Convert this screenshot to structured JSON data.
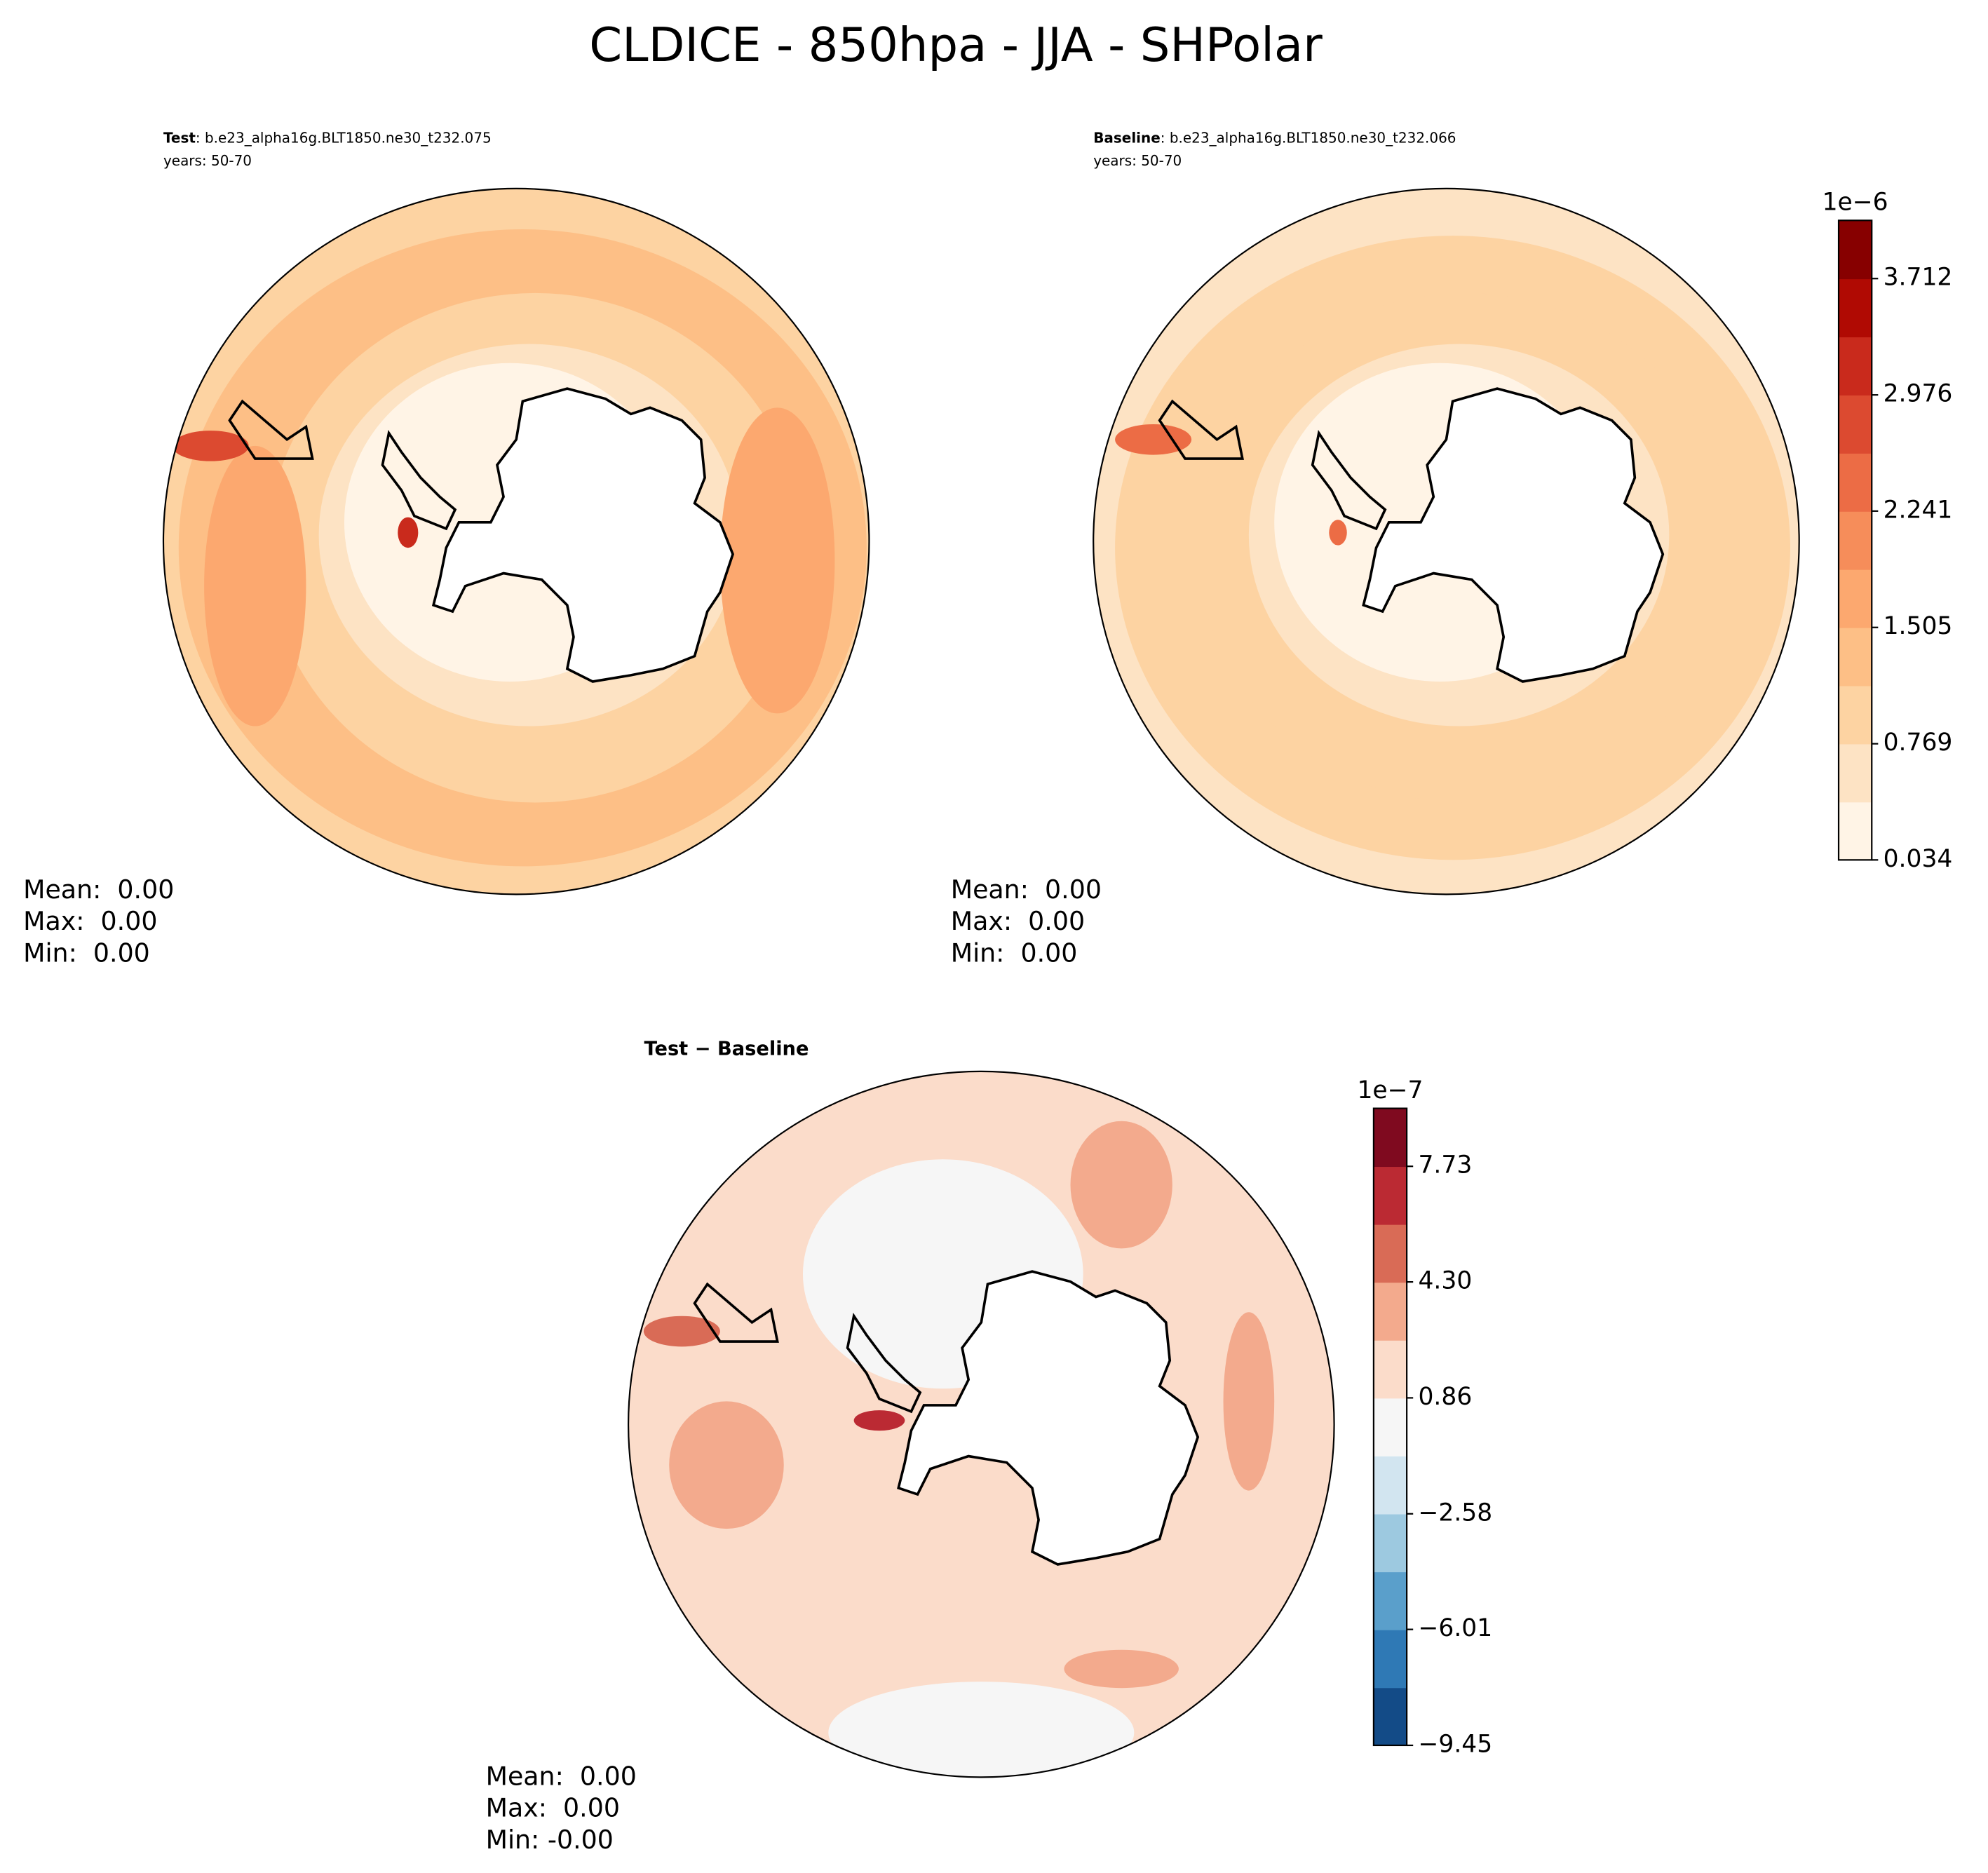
{
  "title": "CLDICE - 850hpa - JJA - SHPolar",
  "panels": [
    {
      "name": "Test",
      "case": ": b.e23_alpha16g.BLT1850.ne30_t232.075",
      "years": "years: 50-70",
      "stats": [
        "Mean:  0.00",
        "Max:  0.00",
        "Min:  0.00"
      ]
    },
    {
      "name": "Baseline",
      "case": ": b.e23_alpha16g.BLT1850.ne30_t232.066",
      "years": "years: 50-70",
      "stats": [
        "Mean:  0.00",
        "Max:  0.00",
        "Min:  0.00"
      ]
    },
    {
      "name": "Test − Baseline",
      "stats": [
        "Mean:  0.00",
        "Max:  0.00",
        "Min: -0.00"
      ]
    }
  ],
  "colorbars": [
    {
      "offset": "1e−6",
      "ylim": [
        0.034,
        4.08
      ],
      "yticks": [
        0.034,
        0.769,
        1.505,
        2.241,
        2.976,
        3.712
      ],
      "colors": [
        "#fff4e6",
        "#fde3c4",
        "#fdd3a2",
        "#fdbf86",
        "#fca86f",
        "#f68d5a",
        "#ec6c45",
        "#dc4a30",
        "#c92a1c",
        "#b00a03",
        "#870000"
      ]
    },
    {
      "offset": "1e−7",
      "ylim": [
        -9.45,
        9.45
      ],
      "yticks": [
        {
          "value": -9.45,
          "label": "−9.45"
        },
        {
          "value": -6.01,
          "label": "−6.01"
        },
        {
          "value": -2.58,
          "label": "−2.58"
        },
        0.86,
        {
          "value": 4.3,
          "label": "4.30"
        },
        7.73
      ],
      "colors": [
        "#134b87",
        "#2f79b5",
        "#5a9fcb",
        "#9dc9e0",
        "#d2e5f0",
        "#f6f6f6",
        "#fbdcca",
        "#f3aa8d",
        "#d96b56",
        "#bb2a33",
        "#7f0a1f"
      ]
    }
  ]
}
